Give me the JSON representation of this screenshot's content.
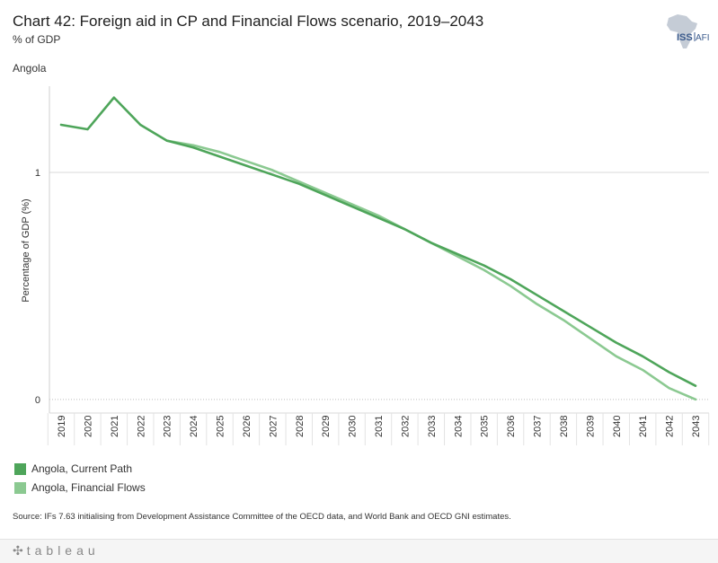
{
  "header": {
    "title": "Chart 42: Foreign aid in CP and Financial Flows scenario, 2019–2043",
    "subtitle": "% of GDP",
    "country": "Angola",
    "logo_text": "ISS|AFI"
  },
  "chart_data": {
    "type": "line",
    "title": "Chart 42: Foreign aid in CP and Financial Flows scenario, 2019–2043",
    "subtitle": "% of GDP",
    "ylabel": "Percentage of GDP (%)",
    "xlabel": "",
    "ylim": [
      -0.06,
      1.38
    ],
    "yticks": [
      0,
      1
    ],
    "ytick_labels": [
      "0",
      "1"
    ],
    "grid": true,
    "legend_position": "bottom-left",
    "x": [
      "2019",
      "2020",
      "2021",
      "2022",
      "2023",
      "2024",
      "2025",
      "2026",
      "2027",
      "2028",
      "2029",
      "2030",
      "2031",
      "2032",
      "2033",
      "2034",
      "2035",
      "2036",
      "2037",
      "2038",
      "2039",
      "2040",
      "2041",
      "2042",
      "2043"
    ],
    "series": [
      {
        "name": "Angola,  Current Path",
        "color": "#4ea55a",
        "values": [
          1.21,
          1.19,
          1.33,
          1.21,
          1.14,
          1.11,
          1.07,
          1.03,
          0.99,
          0.95,
          0.9,
          0.85,
          0.8,
          0.75,
          0.69,
          0.64,
          0.59,
          0.53,
          0.46,
          0.39,
          0.32,
          0.25,
          0.19,
          0.12,
          0.06
        ]
      },
      {
        "name": "Angola,  Financial Flows",
        "color": "#8bc991",
        "values": [
          null,
          null,
          null,
          null,
          1.14,
          1.12,
          1.09,
          1.05,
          1.01,
          0.96,
          0.91,
          0.86,
          0.81,
          0.75,
          0.69,
          0.63,
          0.57,
          0.5,
          0.42,
          0.35,
          0.27,
          0.19,
          0.13,
          0.05,
          0.0
        ]
      }
    ]
  },
  "legend": {
    "items": [
      {
        "label": "Angola,  Current Path",
        "color": "#4ea55a"
      },
      {
        "label": "Angola,  Financial Flows",
        "color": "#8bc991"
      }
    ]
  },
  "source": "Source: IFs 7.63 initialising from Development Assistance Committee of the OECD data, and World Bank and OECD GNI estimates.",
  "footer": {
    "brand": "tableau"
  }
}
